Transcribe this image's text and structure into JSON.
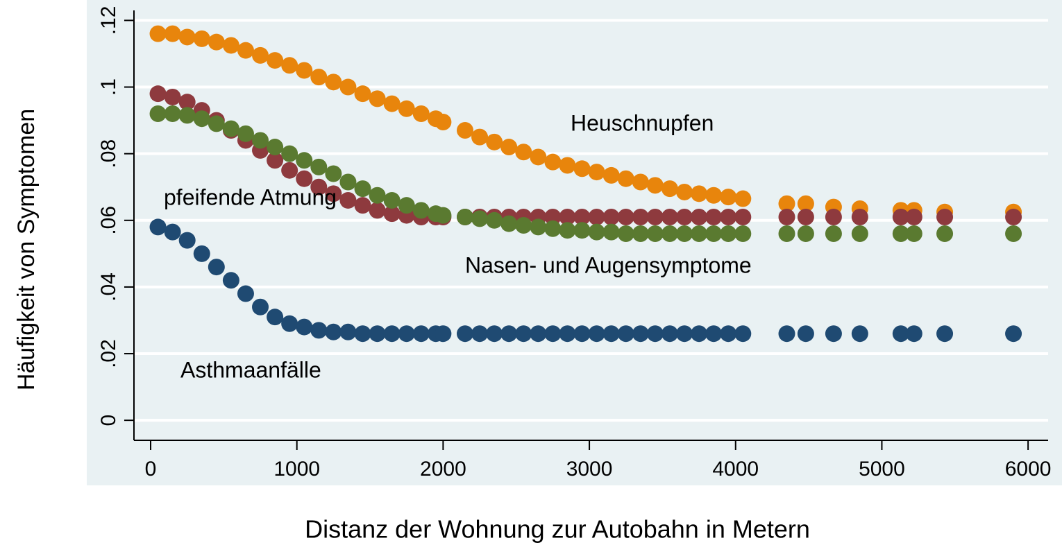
{
  "chart_data": {
    "type": "scatter",
    "xlabel": "Distanz der Wohnung zur Autobahn in Metern",
    "ylabel": "Häufigkeit von Symptomen",
    "xlim": [
      -114,
      6137
    ],
    "ylim": [
      -0.006,
      0.123
    ],
    "xticks": [
      0,
      1000,
      2000,
      3000,
      4000,
      5000,
      6000
    ],
    "yticks": [
      0,
      {
        "value": 0.02,
        "label": ".02"
      },
      {
        "value": 0.04,
        "label": ".04"
      },
      {
        "value": 0.06,
        "label": ".06"
      },
      {
        "value": 0.08,
        "label": ".08"
      },
      {
        "value": 0.1,
        "label": ".1"
      },
      {
        "value": 0.12,
        "label": ".12"
      }
    ],
    "grid": true,
    "x": [
      50,
      150,
      250,
      350,
      450,
      550,
      650,
      750,
      850,
      950,
      1050,
      1150,
      1250,
      1350,
      1450,
      1550,
      1650,
      1750,
      1850,
      1950,
      2000,
      2150,
      2250,
      2350,
      2450,
      2550,
      2650,
      2750,
      2850,
      2950,
      3050,
      3150,
      3250,
      3350,
      3450,
      3550,
      3650,
      3750,
      3850,
      3950,
      4050,
      4350,
      4480,
      4670,
      4850,
      5130,
      5220,
      5430,
      5900
    ],
    "series": [
      {
        "name": "Heuschnupfen",
        "color": "#e8850c",
        "values": [
          0.116,
          0.116,
          0.115,
          0.1145,
          0.1135,
          0.1125,
          0.111,
          0.1095,
          0.108,
          0.1065,
          0.105,
          0.103,
          0.1015,
          0.1,
          0.098,
          0.0965,
          0.095,
          0.0935,
          0.092,
          0.0905,
          0.0895,
          0.087,
          0.085,
          0.0835,
          0.082,
          0.0805,
          0.079,
          0.0775,
          0.0765,
          0.0755,
          0.0745,
          0.0735,
          0.0725,
          0.0715,
          0.0705,
          0.0695,
          0.0685,
          0.068,
          0.0675,
          0.067,
          0.0665,
          0.065,
          0.065,
          0.064,
          0.0635,
          0.063,
          0.063,
          0.0625,
          0.0625
        ]
      },
      {
        "name": "pfeifende Atmung",
        "color": "#8e3a3e",
        "values": [
          0.098,
          0.097,
          0.0955,
          0.093,
          0.09,
          0.087,
          0.084,
          0.081,
          0.078,
          0.075,
          0.0725,
          0.07,
          0.068,
          0.066,
          0.0645,
          0.063,
          0.062,
          0.0615,
          0.061,
          0.061,
          0.061,
          0.061,
          0.061,
          0.061,
          0.061,
          0.061,
          0.061,
          0.061,
          0.061,
          0.061,
          0.061,
          0.061,
          0.061,
          0.061,
          0.061,
          0.061,
          0.061,
          0.061,
          0.061,
          0.061,
          0.061,
          0.061,
          0.061,
          0.061,
          0.061,
          0.061,
          0.061,
          0.061,
          0.061
        ]
      },
      {
        "name": "Nasen- und Augensymptome",
        "color": "#5a7a30",
        "values": [
          0.092,
          0.092,
          0.0915,
          0.0905,
          0.089,
          0.0875,
          0.086,
          0.084,
          0.082,
          0.08,
          0.078,
          0.076,
          0.074,
          0.0715,
          0.0695,
          0.0675,
          0.066,
          0.0645,
          0.063,
          0.062,
          0.0615,
          0.061,
          0.0605,
          0.06,
          0.059,
          0.0585,
          0.058,
          0.0575,
          0.057,
          0.057,
          0.0565,
          0.0565,
          0.056,
          0.056,
          0.056,
          0.056,
          0.056,
          0.056,
          0.056,
          0.056,
          0.056,
          0.056,
          0.056,
          0.056,
          0.056,
          0.056,
          0.056,
          0.056,
          0.056
        ]
      },
      {
        "name": "Asthmaanfälle",
        "color": "#1f4a72",
        "values": [
          0.058,
          0.0565,
          0.054,
          0.05,
          0.046,
          0.042,
          0.038,
          0.034,
          0.031,
          0.029,
          0.028,
          0.027,
          0.0265,
          0.0265,
          0.026,
          0.026,
          0.026,
          0.026,
          0.026,
          0.026,
          0.026,
          0.026,
          0.026,
          0.026,
          0.026,
          0.026,
          0.026,
          0.026,
          0.026,
          0.026,
          0.026,
          0.026,
          0.026,
          0.026,
          0.026,
          0.026,
          0.026,
          0.026,
          0.026,
          0.026,
          0.026,
          0.026,
          0.026,
          0.026,
          0.026,
          0.026,
          0.026,
          0.026,
          0.026
        ]
      }
    ]
  }
}
